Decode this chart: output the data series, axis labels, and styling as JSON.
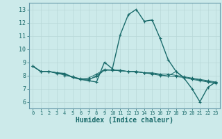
{
  "xlabel": "Humidex (Indice chaleur)",
  "bg_color": "#cceaea",
  "grid_color": "#b8d8d8",
  "line_color": "#1a6b6b",
  "spine_color": "#6699aa",
  "xlim": [
    -0.5,
    23.5
  ],
  "ylim": [
    5.5,
    13.5
  ],
  "xticks": [
    0,
    1,
    2,
    3,
    4,
    5,
    6,
    7,
    8,
    9,
    10,
    11,
    12,
    13,
    14,
    15,
    16,
    17,
    18,
    19,
    20,
    21,
    22,
    23
  ],
  "yticks": [
    6,
    7,
    8,
    9,
    10,
    11,
    12,
    13
  ],
  "lines": [
    [
      8.7,
      8.3,
      8.3,
      8.2,
      8.15,
      7.85,
      7.7,
      7.6,
      7.5,
      9.0,
      8.5,
      11.1,
      12.6,
      13.0,
      12.1,
      12.2,
      10.8,
      9.2,
      8.3,
      7.8,
      7.0,
      6.0,
      7.1,
      7.5
    ],
    [
      8.7,
      8.3,
      8.3,
      8.15,
      8.1,
      7.85,
      7.7,
      7.65,
      8.0,
      8.4,
      8.4,
      8.4,
      8.3,
      8.3,
      8.2,
      8.2,
      8.1,
      8.1,
      8.0,
      7.9,
      7.8,
      7.7,
      7.6,
      7.5
    ],
    [
      8.7,
      8.3,
      8.3,
      8.2,
      8.0,
      7.9,
      7.75,
      7.8,
      8.1,
      8.45,
      8.4,
      8.35,
      8.3,
      8.3,
      8.2,
      8.15,
      8.05,
      7.95,
      8.3,
      7.85,
      7.7,
      7.6,
      7.5,
      7.4
    ],
    [
      8.7,
      8.3,
      8.3,
      8.2,
      8.1,
      7.9,
      7.7,
      7.7,
      7.9,
      8.4,
      8.4,
      8.35,
      8.3,
      8.25,
      8.2,
      8.1,
      8.0,
      7.95,
      7.9,
      7.85,
      7.75,
      7.65,
      7.55,
      7.45
    ]
  ]
}
